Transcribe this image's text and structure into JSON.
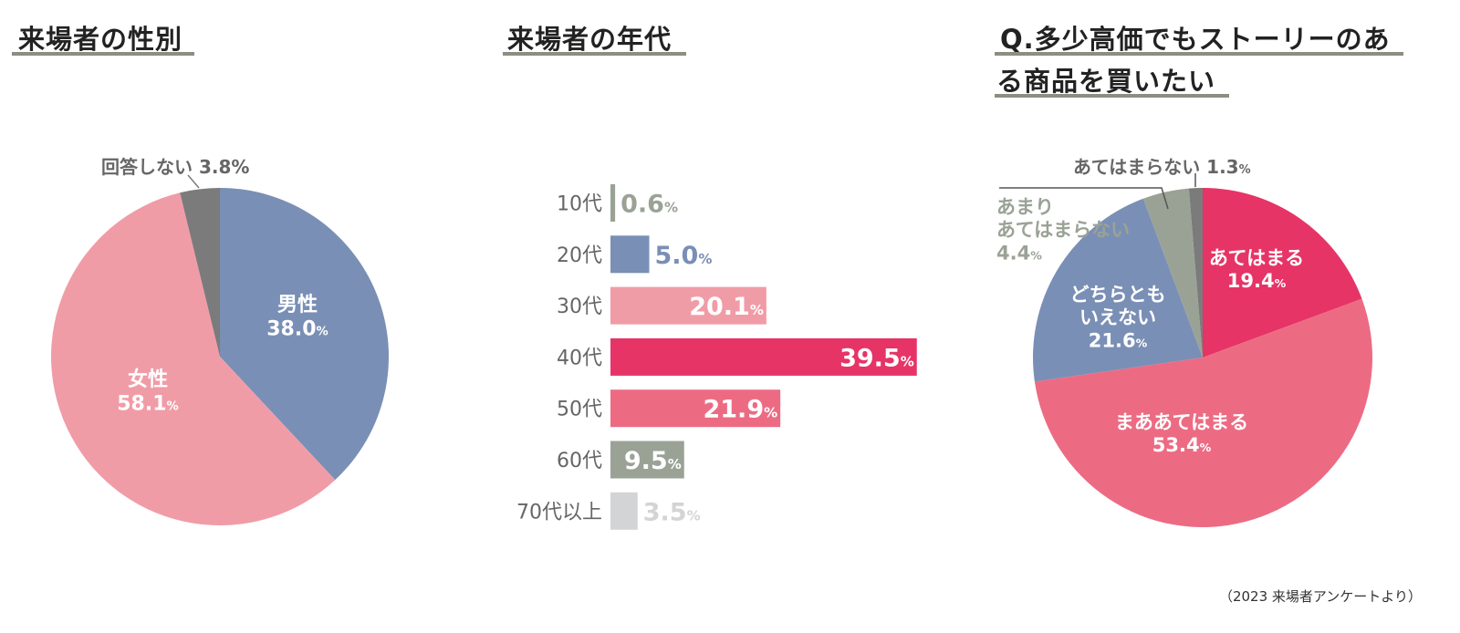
{
  "chart_data": [
    {
      "type": "pie",
      "title": "来場者の性別",
      "unit": "%",
      "slices": [
        {
          "label": "男性",
          "value": 38.0,
          "color": "#7a8fb5"
        },
        {
          "label": "女性",
          "value": 58.1,
          "color": "#f09ca7"
        },
        {
          "label": "回答しない",
          "value": 3.8,
          "color": "#7b7b7b"
        }
      ]
    },
    {
      "type": "bar",
      "orientation": "horizontal",
      "title": "来場者の年代",
      "unit": "%",
      "categories": [
        "10代",
        "20代",
        "30代",
        "40代",
        "50代",
        "60代",
        "70代以上"
      ],
      "values": [
        0.6,
        5.0,
        20.1,
        39.5,
        21.9,
        9.5,
        3.5
      ],
      "colors": [
        "#9aa296",
        "#7a8fb5",
        "#f09ca7",
        "#e63466",
        "#ec6b83",
        "#9aa296",
        "#d3d4d5"
      ]
    },
    {
      "type": "pie",
      "title": "Q.多少高価でもストーリーのある商品を買いたい",
      "title_lines": [
        "Q.多少高価でもストーリーのあ",
        "る商品を買いたい"
      ],
      "unit": "%",
      "slices": [
        {
          "label": "あてはまる",
          "value": 19.4,
          "color": "#e63466"
        },
        {
          "label": "まああてはまる",
          "value": 53.4,
          "color": "#ec6b83"
        },
        {
          "label": "どちらともいえない",
          "label_lines": [
            "どちらとも",
            "いえない"
          ],
          "value": 21.6,
          "color": "#7a8fb5"
        },
        {
          "label": "あまりあてはまらない",
          "label_lines": [
            "あまり",
            "あてはまらない"
          ],
          "value": 4.4,
          "color": "#9aa296"
        },
        {
          "label": "あてはまらない",
          "value": 1.3,
          "color": "#7b7b7b"
        }
      ]
    }
  ],
  "source": "（2023 来場者アンケートより）"
}
